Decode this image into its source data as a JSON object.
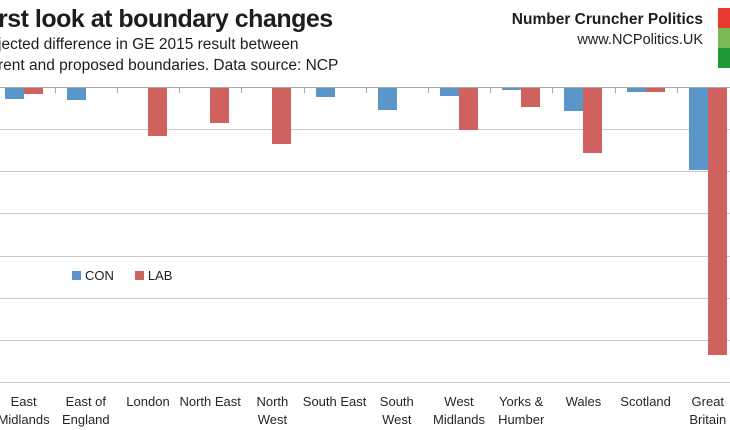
{
  "header": {
    "title": "rst look at boundary changes",
    "subtitle_line1": "jected difference in GE 2015 result between",
    "subtitle_line2": "rent and proposed boundaries. Data source: NCP",
    "brand_name": "Number Cruncher Politics",
    "brand_url": "www.NCPolitics.UK",
    "logo_colors": [
      "#e8392e",
      "#7cba53",
      "#1f9a38"
    ]
  },
  "legend": {
    "position": "bottom-left-of-plot",
    "items": [
      {
        "label": "CON",
        "color": "#5b96c8"
      },
      {
        "label": "LAB",
        "color": "#cf615e"
      }
    ]
  },
  "chart_data": {
    "type": "bar",
    "orientation": "vertical-downward",
    "title": "rst look at boundary changes",
    "subtitle": "jected difference in GE 2015 result between / rent and proposed boundaries. Data source: NCP",
    "xlabel": "",
    "ylabel": "",
    "y_axis_note": "y-axis tick labels cropped out of frame; values estimated in gridline units, 0 at top axis, bars extend downward (negative)",
    "ylim": [
      -7,
      0
    ],
    "gridline_step": 1,
    "grid": true,
    "categories": [
      "East\nMidlands",
      "East of\nEngland",
      "London",
      "North East",
      "North\nWest",
      "South East",
      "South\nWest",
      "West\nMidlands",
      "Yorks &\nHumber",
      "Wales",
      "Scotland",
      "Great\nBritain"
    ],
    "series": [
      {
        "name": "CON",
        "color": "#5b96c8",
        "values": [
          -0.25,
          -0.28,
          0,
          0,
          0,
          -0.21,
          -0.52,
          -0.18,
          -0.05,
          -0.55,
          -0.1,
          -1.95
        ]
      },
      {
        "name": "LAB",
        "color": "#cf615e",
        "values": [
          -0.14,
          0,
          -1.15,
          -0.84,
          -1.33,
          0,
          0,
          -0.99,
          -0.46,
          -1.54,
          -0.1,
          -6.33
        ]
      }
    ]
  },
  "colors": {
    "gridline": "#c9c9c9",
    "axis": "#a8a8a8",
    "text": "#1d1d1d"
  }
}
